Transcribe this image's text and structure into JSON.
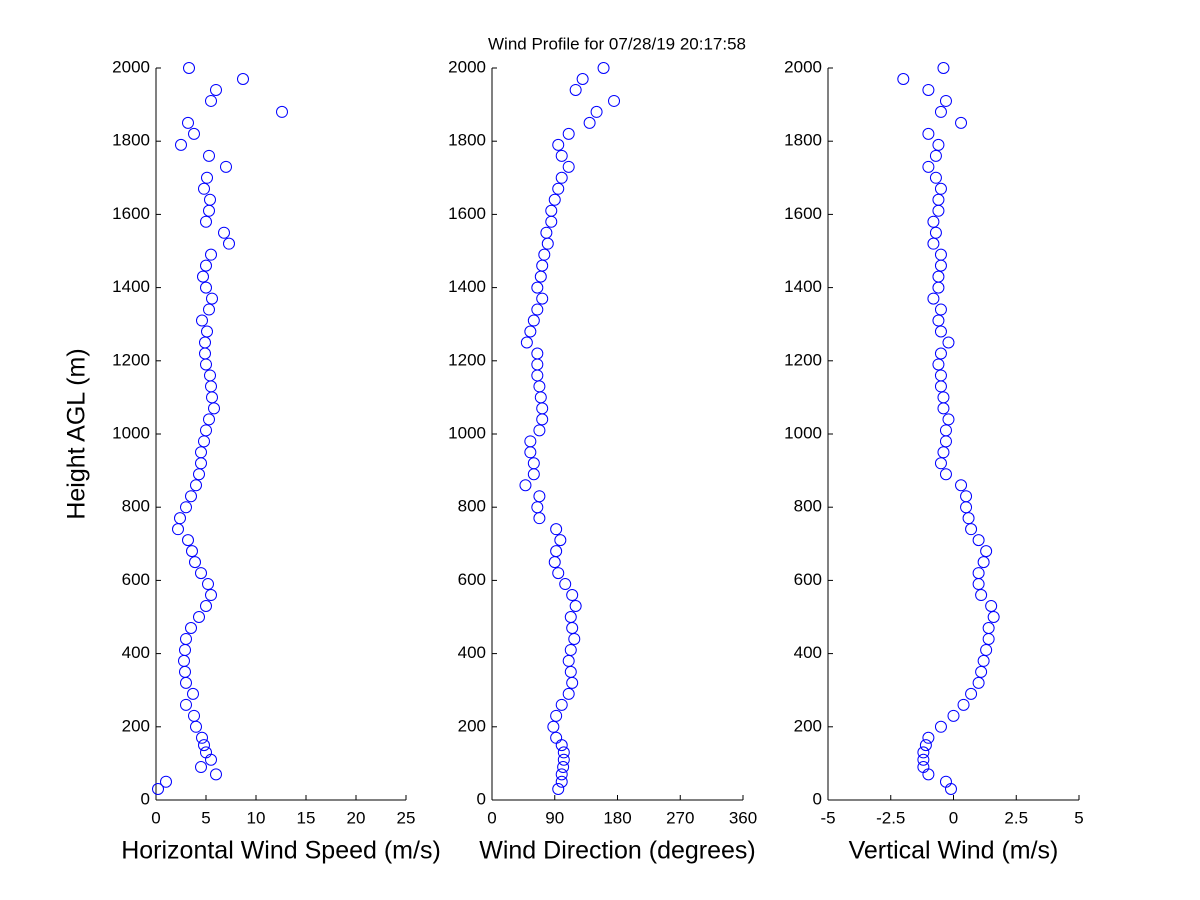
{
  "chart_data": [
    {
      "type": "scatter",
      "title": "Wind Profile for  07/28/19 20:17:58",
      "xlabel": "Horizontal Wind Speed (m/s)",
      "ylabel": "Height AGL (m)",
      "color": "#0000ff",
      "xlim": [
        0,
        25
      ],
      "xticks": [
        0,
        5,
        10,
        15,
        20,
        25
      ],
      "ylim": [
        0,
        2000
      ],
      "yticks": [
        0,
        200,
        400,
        600,
        800,
        1000,
        1200,
        1400,
        1600,
        1800,
        2000
      ],
      "x": [
        0.2,
        1.0,
        6.0,
        4.5,
        5.5,
        5.0,
        4.8,
        4.6,
        4.0,
        3.8,
        3.0,
        3.7,
        3.0,
        2.9,
        2.8,
        2.9,
        3.0,
        3.5,
        4.3,
        5.0,
        5.5,
        5.2,
        4.5,
        3.9,
        3.6,
        3.2,
        2.2,
        2.4,
        3.0,
        3.5,
        4.0,
        4.3,
        4.5,
        4.5,
        4.8,
        5.0,
        5.3,
        5.8,
        5.6,
        5.5,
        5.4,
        5.0,
        4.9,
        4.9,
        5.1,
        4.6,
        5.3,
        5.6,
        5.0,
        4.7,
        5.0,
        5.5,
        7.3,
        6.8,
        5.0,
        5.3,
        5.4,
        4.8,
        5.1,
        7.0,
        5.3,
        2.5,
        3.8,
        3.2,
        12.6,
        5.5,
        6.0,
        8.7,
        3.3
      ],
      "y": [
        30,
        50,
        70,
        90,
        110,
        130,
        150,
        170,
        200,
        230,
        260,
        290,
        320,
        350,
        380,
        410,
        440,
        470,
        500,
        530,
        560,
        590,
        620,
        650,
        680,
        710,
        740,
        770,
        800,
        830,
        860,
        890,
        920,
        950,
        980,
        1010,
        1040,
        1070,
        1100,
        1130,
        1160,
        1190,
        1220,
        1250,
        1280,
        1310,
        1340,
        1370,
        1400,
        1430,
        1460,
        1490,
        1520,
        1550,
        1580,
        1610,
        1640,
        1670,
        1700,
        1730,
        1760,
        1790,
        1820,
        1850,
        1880,
        1910,
        1940,
        1970,
        2000
      ]
    },
    {
      "type": "scatter",
      "xlabel": "Wind Direction (degrees)",
      "color": "#0000ff",
      "xlim": [
        0,
        360
      ],
      "xticks": [
        0,
        90,
        180,
        270,
        360
      ],
      "ylim": [
        0,
        2000
      ],
      "yticks": [
        0,
        200,
        400,
        600,
        800,
        1000,
        1200,
        1400,
        1600,
        1800,
        2000
      ],
      "x": [
        95,
        100,
        100,
        102,
        103,
        103,
        100,
        92,
        88,
        92,
        100,
        110,
        115,
        113,
        110,
        113,
        118,
        115,
        113,
        120,
        115,
        105,
        95,
        90,
        92,
        98,
        92,
        68,
        65,
        68,
        48,
        60,
        60,
        55,
        55,
        68,
        72,
        72,
        70,
        68,
        65,
        65,
        65,
        50,
        55,
        60,
        65,
        72,
        65,
        70,
        72,
        75,
        80,
        78,
        85,
        85,
        90,
        95,
        100,
        110,
        100,
        95,
        110,
        140,
        150,
        175,
        120,
        130,
        160
      ],
      "y": [
        30,
        50,
        70,
        90,
        110,
        130,
        150,
        170,
        200,
        230,
        260,
        290,
        320,
        350,
        380,
        410,
        440,
        470,
        500,
        530,
        560,
        590,
        620,
        650,
        680,
        710,
        740,
        770,
        800,
        830,
        860,
        890,
        920,
        950,
        980,
        1010,
        1040,
        1070,
        1100,
        1130,
        1160,
        1190,
        1220,
        1250,
        1280,
        1310,
        1340,
        1370,
        1400,
        1430,
        1460,
        1490,
        1520,
        1550,
        1580,
        1610,
        1640,
        1670,
        1700,
        1730,
        1760,
        1790,
        1820,
        1850,
        1880,
        1910,
        1940,
        1970,
        2000
      ]
    },
    {
      "type": "scatter",
      "xlabel": "Vertical Wind (m/s)",
      "color": "#0000ff",
      "xlim": [
        -5,
        5
      ],
      "xticks": [
        -5,
        -2.5,
        0,
        2.5,
        5
      ],
      "ylim": [
        0,
        2000
      ],
      "yticks": [
        0,
        200,
        400,
        600,
        800,
        1000,
        1200,
        1400,
        1600,
        1800,
        2000
      ],
      "x": [
        -0.1,
        -0.3,
        -1.0,
        -1.2,
        -1.2,
        -1.2,
        -1.1,
        -1.0,
        -0.5,
        0.0,
        0.4,
        0.7,
        1.0,
        1.1,
        1.2,
        1.3,
        1.4,
        1.4,
        1.6,
        1.5,
        1.1,
        1.0,
        1.0,
        1.2,
        1.3,
        1.0,
        0.7,
        0.6,
        0.5,
        0.5,
        0.3,
        -0.3,
        -0.5,
        -0.4,
        -0.3,
        -0.3,
        -0.2,
        -0.4,
        -0.4,
        -0.5,
        -0.5,
        -0.6,
        -0.5,
        -0.2,
        -0.5,
        -0.6,
        -0.5,
        -0.8,
        -0.6,
        -0.6,
        -0.5,
        -0.5,
        -0.8,
        -0.7,
        -0.8,
        -0.6,
        -0.6,
        -0.5,
        -0.7,
        -1.0,
        -0.7,
        -0.6,
        -1.0,
        0.3,
        -0.5,
        -0.3,
        -1.0,
        -2.0,
        -0.4
      ],
      "y": [
        30,
        50,
        70,
        90,
        110,
        130,
        150,
        170,
        200,
        230,
        260,
        290,
        320,
        350,
        380,
        410,
        440,
        470,
        500,
        530,
        560,
        590,
        620,
        650,
        680,
        710,
        740,
        770,
        800,
        830,
        860,
        890,
        920,
        950,
        980,
        1010,
        1040,
        1070,
        1100,
        1130,
        1160,
        1190,
        1220,
        1250,
        1280,
        1310,
        1340,
        1370,
        1400,
        1430,
        1460,
        1490,
        1520,
        1550,
        1580,
        1610,
        1640,
        1670,
        1700,
        1730,
        1760,
        1790,
        1820,
        1850,
        1880,
        1910,
        1940,
        1970,
        2000
      ]
    }
  ]
}
